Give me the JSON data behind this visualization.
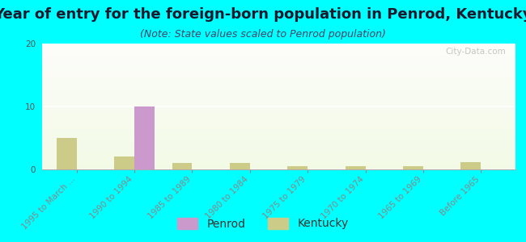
{
  "title": "Year of entry for the foreign-born population in Penrod, Kentucky",
  "subtitle": "(Note: State values scaled to Penrod population)",
  "categories": [
    "1995 to March ...",
    "1990 to 1994",
    "1985 to 1989",
    "1980 to 1984",
    "1975 to 1979",
    "1970 to 1974",
    "1965 to 1969",
    "Before 1965"
  ],
  "penrod_values": [
    0,
    10,
    0,
    0,
    0,
    0,
    0,
    0
  ],
  "kentucky_values": [
    5,
    2,
    1,
    1,
    0.5,
    0.5,
    0.5,
    1.2
  ],
  "penrod_color": "#cc99cc",
  "kentucky_color": "#cccc88",
  "background_color": "#00ffff",
  "ylim": [
    0,
    20
  ],
  "yticks": [
    0,
    10,
    20
  ],
  "bar_width": 0.35,
  "title_fontsize": 13,
  "subtitle_fontsize": 9,
  "tick_label_fontsize": 7.5,
  "legend_fontsize": 10,
  "watermark": "City-Data.com"
}
